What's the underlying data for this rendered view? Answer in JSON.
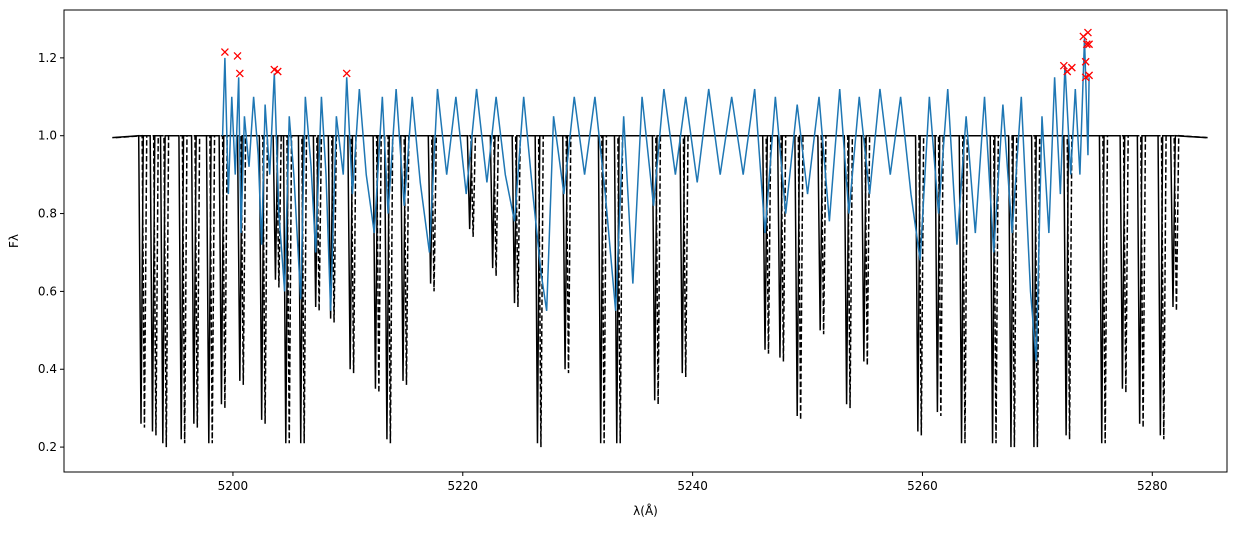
{
  "chart_data": {
    "type": "line",
    "xlabel": "λ(Å)",
    "ylabel": "Fλ",
    "xlim": [
      5185.3,
      5286.5
    ],
    "ylim": [
      0.136,
      1.323
    ],
    "xticks": [
      5200,
      5220,
      5240,
      5260,
      5280
    ],
    "yticks": [
      0.2,
      0.4,
      0.6,
      0.8,
      {
        "value": 1,
        "label": "1.0"
      },
      1.2
    ],
    "series": [
      {
        "type": "line",
        "style": "solid",
        "color": "#000000",
        "x": [
          5189.5,
          5191.8,
          5192.0,
          5192.2,
          5192.8,
          5193.0,
          5193.2,
          5193.7,
          5193.9,
          5194.1,
          5195.3,
          5195.5,
          5195.7,
          5196.4,
          5196.6,
          5196.8,
          5197.7,
          5197.9,
          5198.1,
          5198.8,
          5199.0,
          5199.2,
          5200.4,
          5200.6,
          5200.8,
          5202.3,
          5202.5,
          5202.7,
          5203.5,
          5203.7,
          5203.9,
          5204.4,
          5204.6,
          5204.8,
          5205.7,
          5205.9,
          5206.1,
          5207.0,
          5207.2,
          5207.4,
          5208.3,
          5208.5,
          5208.7,
          5210.0,
          5210.2,
          5210.4,
          5212.2,
          5212.4,
          5212.6,
          5213.2,
          5213.4,
          5213.6,
          5214.6,
          5214.8,
          5215.0,
          5217.0,
          5217.2,
          5217.4,
          5220.4,
          5220.6,
          5220.8,
          5222.4,
          5222.6,
          5222.8,
          5224.3,
          5224.5,
          5224.7,
          5226.3,
          5226.5,
          5226.7,
          5228.7,
          5228.9,
          5229.1,
          5231.8,
          5232.0,
          5232.2,
          5233.2,
          5233.4,
          5233.6,
          5236.5,
          5236.7,
          5236.9,
          5238.9,
          5239.1,
          5239.3,
          5246.1,
          5246.3,
          5246.5,
          5247.4,
          5247.6,
          5247.8,
          5248.9,
          5249.1,
          5249.3,
          5250.9,
          5251.1,
          5251.3,
          5253.2,
          5253.4,
          5253.6,
          5254.7,
          5254.9,
          5255.1,
          5259.4,
          5259.6,
          5259.8,
          5261.1,
          5261.3,
          5261.5,
          5263.2,
          5263.4,
          5263.6,
          5265.9,
          5266.1,
          5266.3,
          5267.5,
          5267.7,
          5267.9,
          5269.5,
          5269.7,
          5269.9,
          5272.3,
          5272.5,
          5272.7,
          5275.4,
          5275.6,
          5275.8,
          5277.2,
          5277.4,
          5277.6,
          5278.7,
          5278.9,
          5279.1,
          5280.5,
          5280.7,
          5280.9,
          5281.6,
          5281.8,
          5282.0,
          5284.7
        ],
        "values": [
          0.995,
          1,
          0.26,
          1,
          1,
          0.24,
          1,
          1,
          0.21,
          1,
          1,
          0.22,
          1,
          1,
          0.26,
          1,
          1,
          0.21,
          1,
          1,
          0.31,
          1,
          1,
          0.37,
          1,
          1,
          0.27,
          1,
          1,
          0.63,
          1,
          1,
          0.21,
          1,
          1,
          0.21,
          1,
          1,
          0.56,
          1,
          1,
          0.53,
          1,
          1,
          0.4,
          1,
          1,
          0.35,
          1,
          1,
          0.22,
          1,
          1,
          0.37,
          1,
          1,
          0.62,
          1,
          1,
          0.76,
          1,
          1,
          0.66,
          1,
          1,
          0.57,
          1,
          1,
          0.21,
          1,
          1,
          0.4,
          1,
          1,
          0.21,
          1,
          1,
          0.21,
          1,
          1,
          0.32,
          1,
          1,
          0.39,
          1,
          1,
          0.45,
          1,
          1,
          0.43,
          1,
          1,
          0.28,
          1,
          1,
          0.5,
          1,
          1,
          0.31,
          1,
          1,
          0.42,
          1,
          1,
          0.24,
          1,
          1,
          0.29,
          1,
          1,
          0.21,
          1,
          1,
          0.21,
          1,
          1,
          0.2,
          1,
          1,
          0.2,
          1,
          1,
          0.23,
          1,
          1,
          0.21,
          1,
          1,
          0.35,
          1,
          1,
          0.26,
          1,
          1,
          0.23,
          1,
          1,
          0.56,
          1,
          0.995
        ]
      },
      {
        "type": "line",
        "style": "dashed",
        "color": "#000000",
        "x": [
          5189.8,
          5192.1,
          5192.3,
          5192.5,
          5193.1,
          5193.3,
          5193.5,
          5194.0,
          5194.2,
          5194.4,
          5195.6,
          5195.8,
          5196.0,
          5196.7,
          5196.9,
          5197.1,
          5198.0,
          5198.2,
          5198.4,
          5199.1,
          5199.3,
          5199.5,
          5200.7,
          5200.9,
          5201.1,
          5202.6,
          5202.8,
          5203.0,
          5203.8,
          5204.0,
          5204.2,
          5204.7,
          5204.9,
          5205.1,
          5206.0,
          5206.2,
          5206.4,
          5207.3,
          5207.5,
          5207.7,
          5208.6,
          5208.8,
          5209.0,
          5210.3,
          5210.5,
          5210.7,
          5212.5,
          5212.7,
          5212.9,
          5213.5,
          5213.7,
          5213.9,
          5214.9,
          5215.1,
          5215.3,
          5217.3,
          5217.5,
          5217.7,
          5220.7,
          5220.9,
          5221.1,
          5222.7,
          5222.9,
          5223.1,
          5224.6,
          5224.8,
          5225.0,
          5226.6,
          5226.8,
          5227.0,
          5229.0,
          5229.2,
          5229.4,
          5232.1,
          5232.3,
          5232.5,
          5233.5,
          5233.7,
          5233.9,
          5236.8,
          5237.0,
          5237.2,
          5239.2,
          5239.4,
          5239.6,
          5246.4,
          5246.6,
          5246.8,
          5247.7,
          5247.9,
          5248.1,
          5249.2,
          5249.4,
          5249.6,
          5251.2,
          5251.4,
          5251.6,
          5253.5,
          5253.7,
          5253.9,
          5255.0,
          5255.2,
          5255.4,
          5259.7,
          5259.9,
          5260.1,
          5261.4,
          5261.6,
          5261.8,
          5263.5,
          5263.7,
          5263.9,
          5266.2,
          5266.4,
          5266.6,
          5267.8,
          5268.0,
          5268.2,
          5269.8,
          5270.0,
          5270.2,
          5272.6,
          5272.8,
          5273.0,
          5275.7,
          5275.9,
          5276.1,
          5277.5,
          5277.7,
          5277.9,
          5279.0,
          5279.2,
          5279.4,
          5280.8,
          5281.0,
          5281.2,
          5281.9,
          5282.1,
          5282.3,
          5284.9
        ],
        "values": [
          0.995,
          1,
          0.25,
          1,
          1,
          0.23,
          1,
          1,
          0.2,
          1,
          1,
          0.21,
          1,
          1,
          0.25,
          1,
          1,
          0.21,
          1,
          1,
          0.3,
          1,
          1,
          0.36,
          1,
          1,
          0.26,
          1,
          1,
          0.61,
          1,
          1,
          0.21,
          1,
          1,
          0.21,
          1,
          1,
          0.55,
          1,
          1,
          0.52,
          1,
          1,
          0.39,
          1,
          1,
          0.34,
          1,
          1,
          0.21,
          1,
          1,
          0.36,
          1,
          1,
          0.6,
          1,
          1,
          0.74,
          1,
          1,
          0.64,
          1,
          1,
          0.56,
          1,
          1,
          0.2,
          1,
          1,
          0.39,
          1,
          1,
          0.21,
          1,
          1,
          0.21,
          1,
          1,
          0.31,
          1,
          1,
          0.38,
          1,
          1,
          0.44,
          1,
          1,
          0.42,
          1,
          1,
          0.27,
          1,
          1,
          0.49,
          1,
          1,
          0.3,
          1,
          1,
          0.41,
          1,
          1,
          0.23,
          1,
          1,
          0.28,
          1,
          1,
          0.21,
          1,
          1,
          0.21,
          1,
          1,
          0.2,
          1,
          1,
          0.2,
          1,
          1,
          0.22,
          1,
          1,
          0.21,
          1,
          1,
          0.34,
          1,
          1,
          0.25,
          1,
          1,
          0.22,
          1,
          1,
          0.55,
          1,
          0.995
        ]
      },
      {
        "type": "line",
        "style": "solid",
        "color": "#1f77b4",
        "x": [
          5199.1,
          5199.3,
          5199.6,
          5199.9,
          5200.2,
          5200.5,
          5200.7,
          5201.0,
          5201.4,
          5201.8,
          5202.2,
          5202.5,
          5202.8,
          5203.2,
          5203.6,
          5204.0,
          5204.5,
          5204.9,
          5205.3,
          5205.9,
          5206.3,
          5206.8,
          5207.2,
          5207.7,
          5208.1,
          5208.5,
          5209.0,
          5209.6,
          5209.9,
          5210.4,
          5211.0,
          5211.6,
          5212.3,
          5213.0,
          5213.5,
          5214.2,
          5214.9,
          5215.6,
          5216.3,
          5217.1,
          5217.8,
          5218.6,
          5219.4,
          5220.3,
          5221.2,
          5222.1,
          5222.9,
          5223.7,
          5224.5,
          5225.3,
          5226.1,
          5226.8,
          5227.3,
          5227.9,
          5228.8,
          5229.7,
          5230.6,
          5231.5,
          5232.4,
          5233.3,
          5234.0,
          5234.8,
          5235.6,
          5236.6,
          5237.5,
          5238.5,
          5239.4,
          5240.4,
          5241.4,
          5242.4,
          5243.4,
          5244.4,
          5245.4,
          5246.3,
          5247.2,
          5248.1,
          5249.1,
          5250.0,
          5251.0,
          5251.9,
          5252.8,
          5253.6,
          5254.5,
          5255.4,
          5256.3,
          5257.2,
          5258.1,
          5259.0,
          5259.8,
          5260.6,
          5261.4,
          5262.2,
          5263.0,
          5263.8,
          5264.6,
          5265.4,
          5266.2,
          5267.0,
          5267.8,
          5268.6,
          5269.4,
          5269.9,
          5270.4,
          5271.0,
          5271.5,
          5272.0,
          5272.4,
          5272.9,
          5273.3,
          5273.7,
          5274.1,
          5274.4,
          5274.5
        ],
        "values": [
          1.0,
          1.2,
          0.85,
          1.1,
          0.9,
          1.15,
          0.75,
          1.05,
          0.92,
          1.1,
          0.95,
          0.72,
          1.08,
          0.9,
          1.16,
          0.8,
          0.6,
          1.05,
          0.9,
          0.58,
          1.1,
          0.92,
          0.7,
          1.1,
          0.9,
          0.55,
          1.05,
          0.9,
          1.15,
          0.85,
          1.12,
          0.9,
          0.75,
          1.1,
          0.8,
          1.12,
          0.82,
          1.1,
          0.88,
          0.7,
          1.12,
          0.9,
          1.1,
          0.85,
          1.12,
          0.88,
          1.1,
          0.9,
          0.78,
          1.1,
          0.85,
          0.65,
          0.55,
          1.05,
          0.85,
          1.1,
          0.9,
          1.1,
          0.85,
          0.55,
          1.05,
          0.62,
          1.1,
          0.82,
          1.12,
          0.9,
          1.1,
          0.88,
          1.12,
          0.9,
          1.1,
          0.9,
          1.12,
          0.75,
          1.1,
          0.8,
          1.08,
          0.85,
          1.1,
          0.78,
          1.12,
          0.8,
          1.1,
          0.85,
          1.12,
          0.9,
          1.1,
          0.85,
          0.68,
          1.1,
          0.8,
          1.12,
          0.72,
          1.05,
          0.75,
          1.1,
          0.7,
          1.08,
          0.75,
          1.1,
          0.6,
          0.42,
          1.05,
          0.75,
          1.15,
          0.85,
          1.18,
          0.9,
          1.12,
          0.9,
          1.25,
          0.95,
          1.15
        ]
      },
      {
        "type": "scatter",
        "marker": "x",
        "color": "#ff0000",
        "x": [
          5199.3,
          5200.4,
          5200.6,
          5203.6,
          5203.9,
          5209.9,
          5272.3,
          5272.6,
          5273.0,
          5274.0,
          5274.4,
          5274.3,
          5274.5,
          5274.2,
          5274.5,
          5274.2
        ],
        "values": [
          1.215,
          1.205,
          1.16,
          1.17,
          1.165,
          1.16,
          1.18,
          1.165,
          1.175,
          1.255,
          1.265,
          1.235,
          1.235,
          1.15,
          1.155,
          1.19
        ]
      }
    ]
  }
}
